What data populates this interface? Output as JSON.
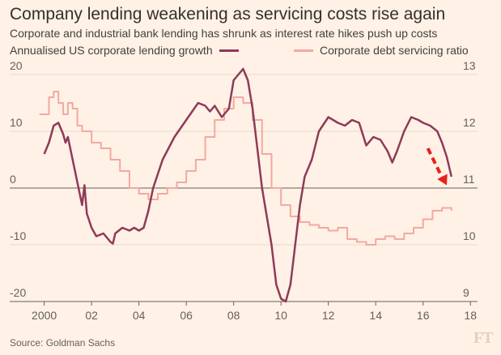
{
  "chart_data": {
    "type": "line",
    "title": "Company lending weakening as servicing costs rise again",
    "subtitle": "Corporate and industrial bank lending has shrunk as interest rate hikes push up costs",
    "xlabel": "",
    "ylabel_left": "",
    "ylabel_right": "",
    "x_ticks": [
      "2000",
      "02",
      "04",
      "06",
      "08",
      "10",
      "12",
      "14",
      "16",
      "18"
    ],
    "x_range": [
      1999.5,
      2018.3
    ],
    "y_left_ticks": [
      "20",
      "10",
      "0",
      "-10",
      "-20"
    ],
    "y_left_range": [
      -20,
      20
    ],
    "y_right_ticks": [
      "13",
      "12",
      "11",
      "10",
      "9"
    ],
    "y_right_range": [
      9,
      13
    ],
    "grid": true,
    "series": [
      {
        "name": "Annualised US corporate lending growth",
        "axis": "left",
        "color": "#8e3a59",
        "points": [
          [
            2000.0,
            6.0
          ],
          [
            2000.2,
            8.0
          ],
          [
            2000.4,
            11.0
          ],
          [
            2000.6,
            11.5
          ],
          [
            2000.8,
            9.5
          ],
          [
            2000.9,
            8.0
          ],
          [
            2001.0,
            9.0
          ],
          [
            2001.2,
            5.0
          ],
          [
            2001.4,
            1.0
          ],
          [
            2001.5,
            -1.0
          ],
          [
            2001.6,
            -3.0
          ],
          [
            2001.7,
            0.5
          ],
          [
            2001.8,
            -4.5
          ],
          [
            2002.0,
            -7.0
          ],
          [
            2002.2,
            -8.5
          ],
          [
            2002.5,
            -8.0
          ],
          [
            2002.8,
            -9.5
          ],
          [
            2002.9,
            -9.8
          ],
          [
            2003.0,
            -8.0
          ],
          [
            2003.3,
            -7.0
          ],
          [
            2003.6,
            -7.5
          ],
          [
            2003.8,
            -7.0
          ],
          [
            2004.0,
            -7.5
          ],
          [
            2004.2,
            -7.0
          ],
          [
            2004.4,
            -4.0
          ],
          [
            2004.6,
            0.0
          ],
          [
            2005.0,
            5.0
          ],
          [
            2005.5,
            9.0
          ],
          [
            2006.0,
            12.0
          ],
          [
            2006.5,
            15.0
          ],
          [
            2006.8,
            14.5
          ],
          [
            2007.0,
            13.5
          ],
          [
            2007.2,
            14.5
          ],
          [
            2007.5,
            12.5
          ],
          [
            2007.8,
            14.0
          ],
          [
            2008.0,
            19.0
          ],
          [
            2008.2,
            20.0
          ],
          [
            2008.4,
            21.0
          ],
          [
            2008.6,
            19.0
          ],
          [
            2008.8,
            14.0
          ],
          [
            2009.0,
            7.0
          ],
          [
            2009.2,
            0.0
          ],
          [
            2009.4,
            -5.0
          ],
          [
            2009.6,
            -10.0
          ],
          [
            2009.8,
            -17.0
          ],
          [
            2010.0,
            -19.5
          ],
          [
            2010.2,
            -20.0
          ],
          [
            2010.4,
            -17.0
          ],
          [
            2010.6,
            -10.0
          ],
          [
            2010.8,
            -3.0
          ],
          [
            2011.0,
            2.0
          ],
          [
            2011.3,
            5.0
          ],
          [
            2011.6,
            10.0
          ],
          [
            2012.0,
            12.5
          ],
          [
            2012.4,
            11.5
          ],
          [
            2012.7,
            11.0
          ],
          [
            2013.0,
            12.0
          ],
          [
            2013.3,
            11.5
          ],
          [
            2013.6,
            7.5
          ],
          [
            2013.9,
            9.0
          ],
          [
            2014.2,
            8.5
          ],
          [
            2014.5,
            6.5
          ],
          [
            2014.7,
            4.5
          ],
          [
            2014.9,
            6.5
          ],
          [
            2015.2,
            10.0
          ],
          [
            2015.5,
            12.5
          ],
          [
            2015.8,
            12.0
          ],
          [
            2016.0,
            11.5
          ],
          [
            2016.3,
            11.0
          ],
          [
            2016.6,
            10.0
          ],
          [
            2016.8,
            8.0
          ],
          [
            2017.0,
            5.5
          ],
          [
            2017.2,
            2.0
          ]
        ]
      },
      {
        "name": "Corporate debt servicing ratio",
        "axis": "right",
        "color": "#f2a9a0",
        "points": [
          [
            1999.8,
            12.3
          ],
          [
            2000.2,
            12.6
          ],
          [
            2000.4,
            12.7
          ],
          [
            2000.6,
            12.5
          ],
          [
            2000.8,
            12.3
          ],
          [
            2001.0,
            12.5
          ],
          [
            2001.2,
            12.4
          ],
          [
            2001.4,
            12.1
          ],
          [
            2001.6,
            12.0
          ],
          [
            2002.0,
            11.8
          ],
          [
            2002.4,
            11.7
          ],
          [
            2002.8,
            11.5
          ],
          [
            2003.2,
            11.3
          ],
          [
            2003.6,
            11.0
          ],
          [
            2004.0,
            10.9
          ],
          [
            2004.4,
            10.8
          ],
          [
            2004.8,
            10.9
          ],
          [
            2005.2,
            11.0
          ],
          [
            2005.6,
            11.1
          ],
          [
            2006.0,
            11.3
          ],
          [
            2006.4,
            11.5
          ],
          [
            2006.8,
            11.9
          ],
          [
            2007.2,
            12.2
          ],
          [
            2007.6,
            12.4
          ],
          [
            2008.0,
            12.6
          ],
          [
            2008.4,
            12.5
          ],
          [
            2008.8,
            12.2
          ],
          [
            2009.2,
            11.6
          ],
          [
            2009.6,
            11.0
          ],
          [
            2010.0,
            10.7
          ],
          [
            2010.4,
            10.5
          ],
          [
            2010.8,
            10.4
          ],
          [
            2011.2,
            10.35
          ],
          [
            2011.6,
            10.3
          ],
          [
            2012.0,
            10.25
          ],
          [
            2012.4,
            10.3
          ],
          [
            2012.8,
            10.1
          ],
          [
            2013.2,
            10.05
          ],
          [
            2013.6,
            10.0
          ],
          [
            2014.0,
            10.1
          ],
          [
            2014.4,
            10.15
          ],
          [
            2014.8,
            10.1
          ],
          [
            2015.2,
            10.2
          ],
          [
            2015.6,
            10.3
          ],
          [
            2016.0,
            10.45
          ],
          [
            2016.4,
            10.6
          ],
          [
            2016.8,
            10.65
          ],
          [
            2017.2,
            10.6
          ]
        ]
      }
    ],
    "annotations": [
      {
        "type": "arrow",
        "style": "dashed",
        "color": "#e8211c",
        "from": [
          2016.2,
          7.0
        ],
        "to": [
          2017.0,
          0.5
        ]
      }
    ]
  },
  "source": "Source: Goldman Sachs",
  "logo": "FT"
}
